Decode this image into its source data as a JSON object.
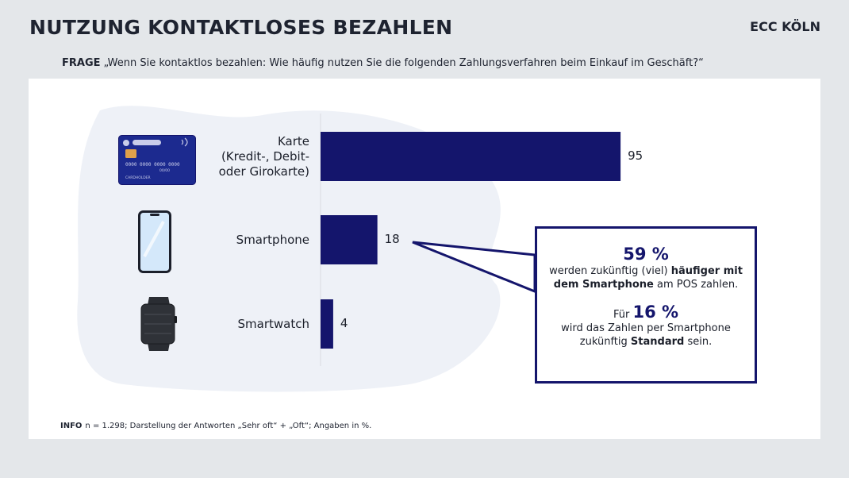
{
  "header": {
    "title": "NUTZUNG KONTAKTLOSES BEZAHLEN",
    "brand": "ECC KÖLN"
  },
  "question": {
    "label": "FRAGE",
    "text": "„Wenn Sie kontaktlos bezahlen: Wie häufig nutzen Sie die folgenden Zahlungsverfahren beim Einkauf im Geschäft?“"
  },
  "chart_data": {
    "type": "bar",
    "orientation": "horizontal",
    "categories": [
      "Karte\n(Kredit-, Debit-\noder Girokarte)",
      "Smartphone",
      "Smartwatch"
    ],
    "values": [
      95,
      18,
      4
    ],
    "value_labels": [
      "95",
      "18",
      "4"
    ],
    "xlim": [
      0,
      100
    ],
    "bar_color": "#14156c",
    "grid": false,
    "legend": "none"
  },
  "icons": {
    "card": {
      "name": "credit-card-icon",
      "number_text": "0000 0000 0000 0000",
      "expiry": "00/00",
      "holder": "CARDHOLDER"
    },
    "smartphone": {
      "name": "smartphone-icon"
    },
    "smartwatch": {
      "name": "smartwatch-icon"
    }
  },
  "callout": {
    "stat1": "59 %",
    "text1_a": "werden zukünftig (viel) ",
    "text1_b": "häufiger mit dem Smartphone",
    "text1_c": " am POS zahlen.",
    "prefix2": "Für",
    "stat2": "16 %",
    "text2_a": "wird das Zahlen per Smartphone zukünftig ",
    "text2_b": "Standard",
    "text2_c": " sein."
  },
  "info": {
    "label": "INFO",
    "text": "n = 1.298; Darstellung der Antworten „Sehr oft“ + „Oft“; Angaben in %."
  },
  "colors": {
    "accent": "#14156c",
    "background": "#e4e7ea",
    "card": "#ffffff",
    "blob": "#eef1f7"
  }
}
